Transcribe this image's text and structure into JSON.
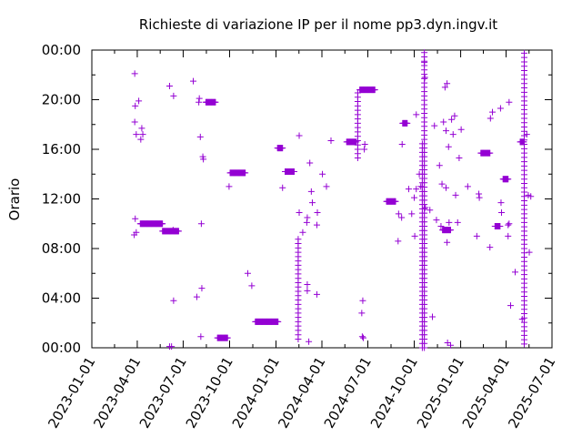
{
  "chart_data": {
    "type": "scatter",
    "title": "Richieste di variazione IP per il nome pp3.dyn.ingv.it",
    "xlabel": "",
    "ylabel": "Orario",
    "x_ticks": [
      "2023-01-01",
      "2023-04-01",
      "2023-07-01",
      "2023-10-01",
      "2024-01-01",
      "2024-04-01",
      "2024-07-01",
      "2024-10-01",
      "2025-01-01",
      "2025-04-01",
      "2025-07-01"
    ],
    "y_ticks": [
      "00:00",
      "04:00",
      "08:00",
      "12:00",
      "16:00",
      "20:00",
      "00:00"
    ],
    "xlim": [
      "2023-01-01",
      "2025-07-01"
    ],
    "ylim": [
      0,
      24
    ],
    "marker": "+",
    "color": "#9400d3",
    "grid": false,
    "legend": "none",
    "vertical_clusters": [
      {
        "date": "2024-02-14",
        "from": 0.7,
        "to": 8.8
      },
      {
        "date": "2024-06-11",
        "from": 15.3,
        "to": 20.7
      },
      {
        "date": "2024-10-17",
        "from": 0.0,
        "to": 16.5
      },
      {
        "date": "2024-10-21",
        "from": 0.0,
        "to": 24.0
      },
      {
        "date": "2025-05-07",
        "from": 0.3,
        "to": 24.0
      }
    ],
    "dense_runs": [
      {
        "from": "2023-04-07",
        "to": "2023-05-21",
        "y": 10.0
      },
      {
        "from": "2023-05-21",
        "to": "2023-06-22",
        "y": 9.4
      },
      {
        "from": "2023-08-15",
        "to": "2023-09-03",
        "y": 19.8
      },
      {
        "from": "2023-09-07",
        "to": "2023-09-27",
        "y": 0.8
      },
      {
        "from": "2023-10-02",
        "to": "2023-11-01",
        "y": 14.1
      },
      {
        "from": "2023-11-21",
        "to": "2024-01-05",
        "y": 2.1
      },
      {
        "from": "2024-01-04",
        "to": "2024-01-14",
        "y": 16.1
      },
      {
        "from": "2024-01-19",
        "to": "2024-02-06",
        "y": 14.2
      },
      {
        "from": "2024-05-20",
        "to": "2024-06-08",
        "y": 16.6
      },
      {
        "from": "2024-06-15",
        "to": "2024-07-15",
        "y": 20.8
      },
      {
        "from": "2024-08-07",
        "to": "2024-08-25",
        "y": 11.8
      },
      {
        "from": "2024-09-08",
        "to": "2024-09-17",
        "y": 18.1
      },
      {
        "from": "2024-11-26",
        "to": "2024-12-12",
        "y": 9.5
      },
      {
        "from": "2025-02-10",
        "to": "2025-02-28",
        "y": 15.7
      },
      {
        "from": "2025-03-10",
        "to": "2025-03-20",
        "y": 9.8
      },
      {
        "from": "2025-03-26",
        "to": "2025-04-05",
        "y": 13.6
      },
      {
        "from": "2025-04-29",
        "to": "2025-05-06",
        "y": 16.6
      }
    ],
    "points": [
      [
        "2023-03-27",
        22.1
      ],
      [
        "2023-03-28",
        19.5
      ],
      [
        "2023-03-27",
        18.2
      ],
      [
        "2023-03-30",
        17.2
      ],
      [
        "2023-04-04",
        19.9
      ],
      [
        "2023-04-10",
        17.7
      ],
      [
        "2023-04-12",
        17.2
      ],
      [
        "2023-04-08",
        16.8
      ],
      [
        "2023-03-28",
        10.4
      ],
      [
        "2023-03-30",
        9.3
      ],
      [
        "2023-03-26",
        9.1
      ],
      [
        "2023-06-04",
        21.1
      ],
      [
        "2023-06-12",
        20.3
      ],
      [
        "2023-06-11",
        9.5
      ],
      [
        "2023-06-04",
        0.1
      ],
      [
        "2023-06-08",
        0.1
      ],
      [
        "2023-06-12",
        3.8
      ],
      [
        "2023-07-21",
        21.5
      ],
      [
        "2023-08-01",
        19.8
      ],
      [
        "2023-08-02",
        20.1
      ],
      [
        "2023-07-28",
        4.1
      ],
      [
        "2023-08-04",
        17.0
      ],
      [
        "2023-08-09",
        15.4
      ],
      [
        "2023-08-10",
        15.2
      ],
      [
        "2023-08-06",
        10.0
      ],
      [
        "2023-08-07",
        4.8
      ],
      [
        "2023-08-05",
        0.9
      ],
      [
        "2023-09-30",
        13.0
      ],
      [
        "2023-11-06",
        6.0
      ],
      [
        "2023-11-14",
        5.0
      ],
      [
        "2024-01-14",
        12.9
      ],
      [
        "2024-02-16",
        17.1
      ],
      [
        "2024-02-16",
        10.9
      ],
      [
        "2024-02-14",
        8.4
      ],
      [
        "2024-02-23",
        9.3
      ],
      [
        "2024-03-03",
        10.5
      ],
      [
        "2024-03-02",
        10.1
      ],
      [
        "2024-03-03",
        5.1
      ],
      [
        "2024-03-03",
        4.6
      ],
      [
        "2024-03-06",
        0.5
      ],
      [
        "2024-03-11",
        12.6
      ],
      [
        "2024-03-13",
        11.7
      ],
      [
        "2024-03-08",
        14.9
      ],
      [
        "2024-03-23",
        10.9
      ],
      [
        "2024-03-22",
        9.9
      ],
      [
        "2024-03-22",
        4.3
      ],
      [
        "2024-04-02",
        14.0
      ],
      [
        "2024-04-10",
        13.0
      ],
      [
        "2024-04-19",
        16.7
      ],
      [
        "2024-06-25",
        16.4
      ],
      [
        "2024-06-24",
        16.0
      ],
      [
        "2024-06-21",
        3.8
      ],
      [
        "2024-06-19",
        2.8
      ],
      [
        "2024-06-20",
        0.9
      ],
      [
        "2024-06-22",
        0.8
      ],
      [
        "2024-08-31",
        10.8
      ],
      [
        "2024-08-30",
        8.6
      ],
      [
        "2024-09-07",
        16.4
      ],
      [
        "2024-09-06",
        10.5
      ],
      [
        "2024-09-20",
        12.8
      ],
      [
        "2024-09-26",
        10.8
      ],
      [
        "2024-10-01",
        12.1
      ],
      [
        "2024-10-02",
        9.0
      ],
      [
        "2024-10-05",
        18.8
      ],
      [
        "2024-10-05",
        12.8
      ],
      [
        "2024-10-11",
        14.0
      ],
      [
        "2024-10-14",
        13.0
      ],
      [
        "2024-10-21",
        23.0
      ],
      [
        "2024-10-22",
        21.8
      ],
      [
        "2024-10-23",
        11.3
      ],
      [
        "2024-11-01",
        11.1
      ],
      [
        "2024-11-06",
        2.5
      ],
      [
        "2024-11-10",
        17.9
      ],
      [
        "2024-11-14",
        10.3
      ],
      [
        "2024-11-20",
        14.7
      ],
      [
        "2024-11-23",
        9.8
      ],
      [
        "2024-11-25",
        13.2
      ],
      [
        "2024-11-28",
        18.2
      ],
      [
        "2024-12-01",
        21.0
      ],
      [
        "2024-12-05",
        21.3
      ],
      [
        "2024-12-03",
        17.5
      ],
      [
        "2024-12-08",
        16.2
      ],
      [
        "2024-12-09",
        10.1
      ],
      [
        "2024-12-05",
        8.5
      ],
      [
        "2024-12-03",
        12.9
      ],
      [
        "2024-12-14",
        18.4
      ],
      [
        "2024-12-17",
        17.2
      ],
      [
        "2024-12-20",
        18.7
      ],
      [
        "2024-12-22",
        12.3
      ],
      [
        "2024-12-26",
        10.1
      ],
      [
        "2024-12-29",
        15.3
      ],
      [
        "2025-01-02",
        17.6
      ],
      [
        "2024-12-06",
        0.4
      ],
      [
        "2024-12-12",
        0.2
      ],
      [
        "2025-01-15",
        13.0
      ],
      [
        "2025-02-02",
        9.0
      ],
      [
        "2025-02-07",
        12.1
      ],
      [
        "2025-02-06",
        12.4
      ],
      [
        "2025-02-28",
        8.1
      ],
      [
        "2025-03-01",
        18.5
      ],
      [
        "2025-03-05",
        19.0
      ],
      [
        "2025-03-21",
        19.3
      ],
      [
        "2025-03-22",
        11.7
      ],
      [
        "2025-03-23",
        10.9
      ],
      [
        "2025-04-07",
        19.8
      ],
      [
        "2025-04-07",
        10.0
      ],
      [
        "2025-04-05",
        9.9
      ],
      [
        "2025-04-05",
        9.0
      ],
      [
        "2025-04-10",
        3.4
      ],
      [
        "2025-04-19",
        6.1
      ],
      [
        "2025-05-03",
        2.3
      ],
      [
        "2025-05-12",
        17.2
      ],
      [
        "2025-05-15",
        12.3
      ],
      [
        "2025-05-20",
        12.2
      ],
      [
        "2025-05-17",
        7.7
      ]
    ]
  }
}
